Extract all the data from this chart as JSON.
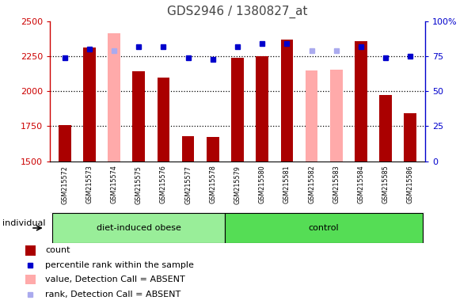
{
  "title": "GDS2946 / 1380827_at",
  "samples": [
    "GSM215572",
    "GSM215573",
    "GSM215574",
    "GSM215575",
    "GSM215576",
    "GSM215577",
    "GSM215578",
    "GSM215579",
    "GSM215580",
    "GSM215581",
    "GSM215582",
    "GSM215583",
    "GSM215584",
    "GSM215585",
    "GSM215586"
  ],
  "count_values": [
    1755,
    2315,
    null,
    2140,
    2095,
    1680,
    1675,
    2240,
    2250,
    2370,
    null,
    null,
    2360,
    1975,
    1840
  ],
  "absent_value_bars": [
    null,
    null,
    2415,
    null,
    null,
    null,
    null,
    null,
    null,
    null,
    2150,
    2155,
    null,
    null,
    null
  ],
  "rank_dots": [
    74,
    80,
    null,
    82,
    82,
    74,
    73,
    82,
    84,
    84,
    null,
    null,
    82,
    74,
    75
  ],
  "absent_rank_dots": [
    null,
    null,
    79,
    null,
    null,
    null,
    null,
    null,
    null,
    null,
    79,
    79,
    null,
    null,
    null
  ],
  "ylim_left": [
    1500,
    2500
  ],
  "ylim_right": [
    0,
    100
  ],
  "yticks_left": [
    1500,
    1750,
    2000,
    2250,
    2500
  ],
  "yticks_right": [
    0,
    25,
    50,
    75,
    100
  ],
  "group1_label": "diet-induced obese",
  "group1_indices": [
    0,
    1,
    2,
    3,
    4,
    5,
    6
  ],
  "group2_label": "control",
  "group2_indices": [
    7,
    8,
    9,
    10,
    11,
    12,
    13,
    14
  ],
  "individual_label": "individual",
  "bar_color": "#aa0000",
  "absent_bar_color": "#ffaaaa",
  "dot_color": "#0000cc",
  "absent_dot_color": "#aaaaee",
  "group1_bg": "#99ee99",
  "group2_bg": "#55dd55",
  "plot_bg": "#ffffff",
  "sample_area_bg": "#cccccc",
  "title_color": "#444444",
  "left_axis_color": "#cc0000",
  "right_axis_color": "#0000cc",
  "bar_width": 0.5,
  "gridline_color": "#000000",
  "hline_75_color": "#bbbbbb"
}
